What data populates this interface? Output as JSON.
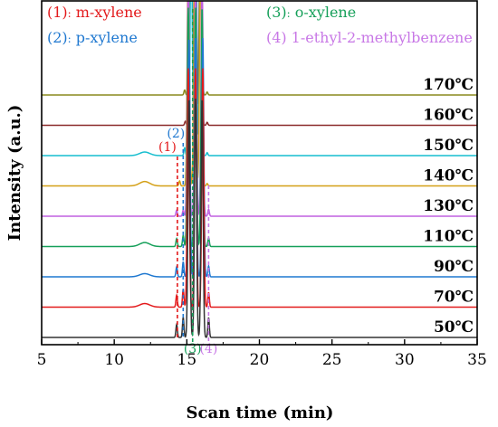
{
  "chart_data": {
    "type": "line",
    "xlabel": "Scan time (min)",
    "ylabel": "Intensity (a.u.)",
    "xlim": [
      5,
      35
    ],
    "x_ticks": [
      5,
      10,
      15,
      20,
      25,
      30,
      35
    ],
    "legend": [
      {
        "num": "(1)",
        "sep": ":",
        "name": "m-xylene",
        "color": "#e31a1c"
      },
      {
        "num": "(2)",
        "sep": ":",
        "name": "p-xylene",
        "color": "#1f78d0"
      },
      {
        "num": "(3)",
        "sep": ":",
        "name": "o-xylene",
        "color": "#16a05a"
      },
      {
        "num": "(4)",
        "sep": "",
        "name": "1-ethyl-2-methylbenzene",
        "color": "#c878e6"
      }
    ],
    "peak_markers": [
      {
        "label": "(1)",
        "x": 14.35,
        "color": "#e31a1c",
        "label_side": "top"
      },
      {
        "label": "(2)",
        "x": 14.75,
        "color": "#1f78d0",
        "label_side": "top"
      },
      {
        "label": "(3)",
        "x": 15.4,
        "color": "#16a05a",
        "label_side": "bottom"
      },
      {
        "label": "(4)",
        "x": 16.5,
        "color": "#c878e6",
        "label_side": "bottom"
      }
    ],
    "series": [
      {
        "name": "170℃",
        "color": "#8a8a1e",
        "baseline": 8.5,
        "peaks": [
          [
            14.85,
            0.25
          ],
          [
            15.3,
            12
          ],
          [
            15.55,
            12
          ],
          [
            15.95,
            12
          ],
          [
            16.4,
            0.15
          ]
        ]
      },
      {
        "name": "160℃",
        "color": "#8b2a2a",
        "baseline": 7.5,
        "peaks": [
          [
            14.9,
            0.2
          ],
          [
            15.3,
            12
          ],
          [
            15.6,
            12
          ],
          [
            15.95,
            12
          ],
          [
            16.4,
            0.15
          ]
        ]
      },
      {
        "name": "150℃",
        "color": "#17becf",
        "baseline": 6.5,
        "peaks": [
          [
            12.1,
            0.18
          ],
          [
            14.85,
            0.4
          ],
          [
            15.3,
            12
          ],
          [
            15.6,
            12
          ],
          [
            15.95,
            12
          ],
          [
            16.4,
            0.15
          ]
        ]
      },
      {
        "name": "140℃",
        "color": "#d4a017",
        "baseline": 5.5,
        "peaks": [
          [
            12.1,
            0.22
          ],
          [
            14.5,
            0.25
          ],
          [
            15.1,
            12
          ],
          [
            15.55,
            12
          ],
          [
            15.95,
            12
          ],
          [
            16.4,
            0.12
          ]
        ]
      },
      {
        "name": "130℃",
        "color": "#c060e0",
        "baseline": 4.5,
        "peaks": [
          [
            14.3,
            0.3
          ],
          [
            14.75,
            0.3
          ],
          [
            15.1,
            12
          ],
          [
            15.6,
            12
          ],
          [
            16.05,
            12
          ],
          [
            16.5,
            0.35
          ]
        ]
      },
      {
        "name": "110℃",
        "color": "#16a05a",
        "baseline": 3.5,
        "peaks": [
          [
            12.1,
            0.2
          ],
          [
            14.3,
            0.4
          ],
          [
            14.75,
            0.55
          ],
          [
            15.1,
            12
          ],
          [
            15.6,
            12
          ],
          [
            16.05,
            12
          ],
          [
            16.5,
            0.45
          ]
        ]
      },
      {
        "name": "90℃",
        "color": "#1f78d0",
        "baseline": 2.5,
        "peaks": [
          [
            12.1,
            0.16
          ],
          [
            14.3,
            0.5
          ],
          [
            14.75,
            0.75
          ],
          [
            15.15,
            12
          ],
          [
            15.6,
            12
          ],
          [
            16.1,
            12
          ],
          [
            16.5,
            0.55
          ]
        ]
      },
      {
        "name": "70℃",
        "color": "#e31a1c",
        "baseline": 1.5,
        "peaks": [
          [
            12.1,
            0.18
          ],
          [
            14.3,
            0.6
          ],
          [
            14.75,
            0.9
          ],
          [
            15.1,
            12
          ],
          [
            15.6,
            12
          ],
          [
            16.1,
            12
          ],
          [
            16.5,
            0.75
          ]
        ]
      },
      {
        "name": "50℃",
        "color": "#333333",
        "baseline": 0.5,
        "peaks": [
          [
            14.3,
            0.65
          ],
          [
            14.75,
            1.0
          ],
          [
            15.15,
            12
          ],
          [
            15.6,
            12
          ],
          [
            16.05,
            12
          ],
          [
            16.5,
            1.0
          ]
        ]
      }
    ]
  }
}
